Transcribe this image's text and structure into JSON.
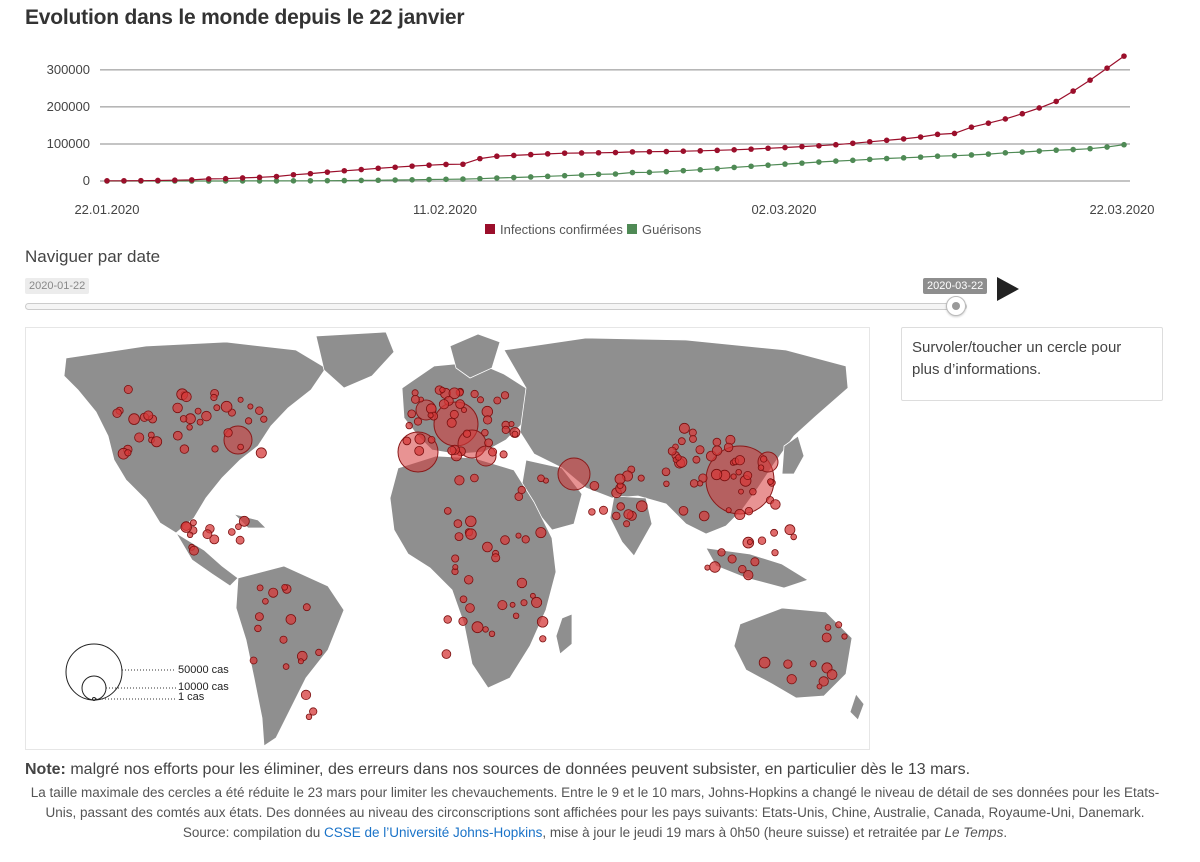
{
  "page": {
    "title": "Evolution dans le monde depuis le 22 janvier",
    "nav_label": "Naviguer par date",
    "slider": {
      "start_date": "2020-01-22",
      "current_date": "2020-03-22",
      "position": 1.0
    },
    "info_box": "Survoler/toucher un cercle pour plus d’informations.",
    "note_bold": "Note:",
    "note_text": " malgré nos efforts pour les éliminer, des erreurs dans nos sources de données peuvent subsister, en particulier dès le 13 mars.",
    "footnote_before": "La taille maximale des cercles a été réduite le 23 mars pour limiter les chevauchements. Entre le 9 et le 10 mars, Johns-Hopkins a changé le niveau de détail de ses données pour les Etats-Unis, passant des comtés aux états. Des données au niveau des circonscriptions sont affichées pour les pays suivants: Etats-Unis, Chine, Australie, Canada, Royaume-Uni, Danemark. Source: compilation du ",
    "footnote_link": "CSSE de l’Université Johns-Hopkins",
    "footnote_after": ", mise à jour le jeudi 19 mars à 0h50 (heure suisse) et retraitée par ",
    "footnote_italic": "Le Temps",
    "footnote_end": "."
  },
  "colors": {
    "infections": "#9b0f2b",
    "recoveries": "#4f8a55",
    "land": "#8f8f8f",
    "bubble": "#d53a3a",
    "grid": "#8a8a8a"
  },
  "chart_data": [
    {
      "type": "line",
      "title": "Evolution dans le monde depuis le 22 janvier",
      "x_tick_labels": [
        "22.01.2020",
        "11.02.2020",
        "02.03.2020",
        "22.03.2020"
      ],
      "y_ticks": [
        0,
        100000,
        200000,
        300000
      ],
      "ylim": [
        0,
        340000
      ],
      "legend_position": "bottom-center",
      "series": [
        {
          "name": "Infections confirmées",
          "color": "#9b0f2b",
          "values": [
            555,
            654,
            941,
            1434,
            2118,
            2927,
            5578,
            6166,
            8234,
            9927,
            12038,
            16787,
            19881,
            23892,
            27635,
            30817,
            34391,
            37120,
            40150,
            42762,
            44802,
            45221,
            60368,
            66885,
            69030,
            71224,
            73258,
            75136,
            75639,
            76197,
            76819,
            78572,
            78958,
            79561,
            80406,
            81388,
            82746,
            84112,
            86011,
            88369,
            90306,
            92840,
            95120,
            97886,
            101801,
            105847,
            109821,
            113590,
            118620,
            125875,
            128352,
            145205,
            156101,
            167454,
            181574,
            197102,
            214821,
            242570,
            272208,
            304507,
            336953
          ]
        },
        {
          "name": "Guérisons",
          "color": "#4f8a55",
          "values": [
            28,
            30,
            36,
            39,
            52,
            61,
            107,
            126,
            143,
            222,
            284,
            472,
            623,
            852,
            1124,
            1487,
            2011,
            2616,
            3244,
            3946,
            4683,
            5150,
            6295,
            8058,
            9395,
            10865,
            12583,
            14352,
            16121,
            18177,
            18890,
            22886,
            23394,
            25227,
            27905,
            30384,
            33277,
            36711,
            39782,
            42716,
            45602,
            48228,
            51170,
            53796,
            55865,
            58358,
            60694,
            62494,
            64404,
            67003,
            68324,
            70251,
            72624,
            76034,
            78088,
            80840,
            83207,
            84854,
            87256,
            91676,
            97882
          ]
        }
      ]
    },
    {
      "type": "scatter",
      "subtype": "bubble-map",
      "legend": {
        "entries": [
          {
            "label": "50000 cas",
            "value": 50000
          },
          {
            "label": "10000 cas",
            "value": 10000
          },
          {
            "label": "1 cas",
            "value": 1
          }
        ]
      }
    }
  ]
}
